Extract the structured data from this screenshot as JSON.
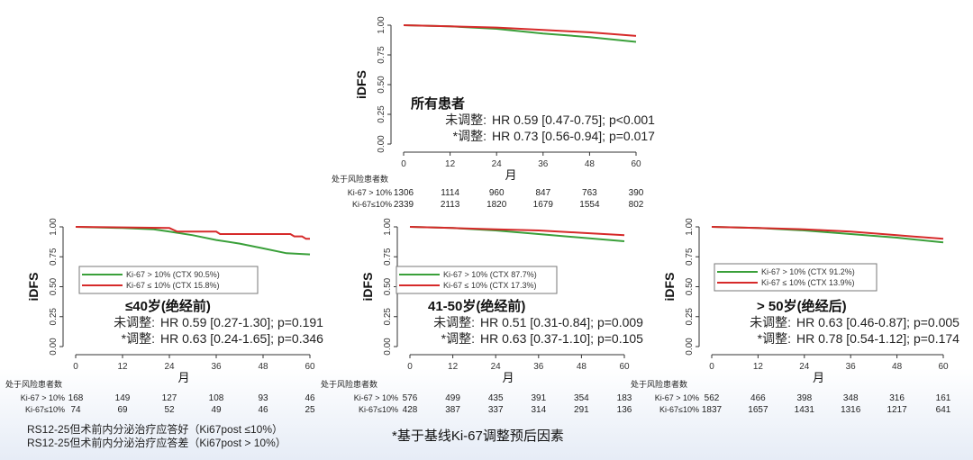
{
  "chart_data": [
    {
      "type": "line",
      "title": "所有患者",
      "ylabel": "iDFS",
      "xlabel": "月",
      "x_ticks": [
        0,
        12,
        24,
        36,
        48,
        60
      ],
      "y_ticks": [
        "0.00",
        "0.25",
        "0.50",
        "0.75",
        "1.00"
      ],
      "ylim": [
        0,
        1
      ],
      "xlim": [
        0,
        60
      ],
      "hr_unadj_label": "未调整:",
      "hr_unadj": "HR 0.59 [0.47-0.75]; p<0.001",
      "hr_adj_label": "*调整:",
      "hr_adj": "HR 0.73 [0.56-0.94]; p=0.017",
      "legend": null,
      "series": [
        {
          "name": "Ki-67 > 10%",
          "color": "#3aa03a",
          "points": [
            [
              0,
              1
            ],
            [
              12,
              0.99
            ],
            [
              24,
              0.97
            ],
            [
              36,
              0.93
            ],
            [
              48,
              0.9
            ],
            [
              60,
              0.86
            ]
          ]
        },
        {
          "name": "Ki-67 ≤ 10%",
          "color": "#d62a2a",
          "points": [
            [
              0,
              1
            ],
            [
              12,
              0.99
            ],
            [
              24,
              0.98
            ],
            [
              36,
              0.96
            ],
            [
              48,
              0.94
            ],
            [
              60,
              0.91
            ]
          ]
        }
      ],
      "risk_title": "处于风险患者数",
      "risk": [
        {
          "label": "Ki-67 > 10%",
          "values": [
            1306,
            1114,
            960,
            847,
            763,
            390
          ]
        },
        {
          "label": "Ki-67≤10%",
          "values": [
            2339,
            2113,
            1820,
            1679,
            1554,
            802
          ]
        }
      ]
    },
    {
      "type": "line",
      "title": "≤40岁(绝经前)",
      "ylabel": "iDFS",
      "xlabel": "月",
      "x_ticks": [
        0,
        12,
        24,
        36,
        48,
        60
      ],
      "y_ticks": [
        "0.00",
        "0.25",
        "0.50",
        "0.75",
        "1.00"
      ],
      "ylim": [
        0,
        1
      ],
      "xlim": [
        0,
        60
      ],
      "hr_unadj_label": "未调整:",
      "hr_unadj": "HR 0.59 [0.27-1.30]; p=0.191",
      "hr_adj_label": "*调整:",
      "hr_adj": "HR 0.63 [0.24-1.65]; p=0.346",
      "legend": [
        "Ki-67 > 10%  (CTX 90.5%)",
        "Ki-67 ≤ 10%  (CTX 15.8%)"
      ],
      "series": [
        {
          "name": "Ki-67 > 10%",
          "color": "#3aa03a",
          "points": [
            [
              0,
              1
            ],
            [
              12,
              0.99
            ],
            [
              20,
              0.98
            ],
            [
              24,
              0.96
            ],
            [
              30,
              0.93
            ],
            [
              36,
              0.89
            ],
            [
              42,
              0.86
            ],
            [
              48,
              0.82
            ],
            [
              54,
              0.78
            ],
            [
              60,
              0.77
            ]
          ]
        },
        {
          "name": "Ki-67 ≤ 10%",
          "color": "#d62a2a",
          "points": [
            [
              0,
              1
            ],
            [
              24,
              0.99
            ],
            [
              26,
              0.96
            ],
            [
              36,
              0.96
            ],
            [
              37,
              0.94
            ],
            [
              55,
              0.94
            ],
            [
              56,
              0.92
            ],
            [
              58,
              0.92
            ],
            [
              59,
              0.9
            ],
            [
              60,
              0.9
            ]
          ]
        }
      ],
      "risk_title": "处于风险患者数",
      "risk": [
        {
          "label": "Ki-67 > 10%",
          "values": [
            168,
            149,
            127,
            108,
            93,
            46
          ]
        },
        {
          "label": "Ki-67≤10%",
          "values": [
            74,
            69,
            52,
            49,
            46,
            25
          ]
        }
      ]
    },
    {
      "type": "line",
      "title": "41-50岁(绝经前)",
      "ylabel": "iDFS",
      "xlabel": "月",
      "x_ticks": [
        0,
        12,
        24,
        36,
        48,
        60
      ],
      "y_ticks": [
        "0.00",
        "0.25",
        "0.50",
        "0.75",
        "1.00"
      ],
      "ylim": [
        0,
        1
      ],
      "xlim": [
        0,
        60
      ],
      "hr_unadj_label": "未调整:",
      "hr_unadj": "HR 0.51 [0.31-0.84]; p=0.009",
      "hr_adj_label": "*调整:",
      "hr_adj": "HR 0.63 [0.37-1.10]; p=0.105",
      "legend": [
        "Ki-67 > 10%  (CTX 87.7%)",
        "Ki-67 ≤ 10%  (CTX 17.3%)"
      ],
      "series": [
        {
          "name": "Ki-67 > 10%",
          "color": "#3aa03a",
          "points": [
            [
              0,
              1
            ],
            [
              12,
              0.99
            ],
            [
              24,
              0.97
            ],
            [
              36,
              0.94
            ],
            [
              48,
              0.91
            ],
            [
              60,
              0.88
            ]
          ]
        },
        {
          "name": "Ki-67 ≤ 10%",
          "color": "#d62a2a",
          "points": [
            [
              0,
              1
            ],
            [
              12,
              0.99
            ],
            [
              24,
              0.98
            ],
            [
              36,
              0.97
            ],
            [
              48,
              0.95
            ],
            [
              60,
              0.93
            ]
          ]
        }
      ],
      "risk_title": "处于风险患者数",
      "risk": [
        {
          "label": "Ki-67 > 10%",
          "values": [
            576,
            499,
            435,
            391,
            354,
            183
          ]
        },
        {
          "label": "Ki-67≤10%",
          "values": [
            428,
            387,
            337,
            314,
            291,
            136
          ]
        }
      ]
    },
    {
      "type": "line",
      "title": "> 50岁(绝经后)",
      "ylabel": "iDFS",
      "xlabel": "月",
      "x_ticks": [
        0,
        12,
        24,
        36,
        48,
        60
      ],
      "y_ticks": [
        "0.00",
        "0.25",
        "0.50",
        "0.75",
        "1.00"
      ],
      "ylim": [
        0,
        1
      ],
      "xlim": [
        0,
        60
      ],
      "hr_unadj_label": "未调整:",
      "hr_unadj": "HR 0.63 [0.46-0.87]; p=0.005",
      "hr_adj_label": "*调整:",
      "hr_adj": "HR 0.78 [0.54-1.12]; p=0.174",
      "legend": [
        "Ki-67 > 10%  (CTX 91.2%)",
        "Ki-67 ≤ 10%  (CTX 13.9%)"
      ],
      "series": [
        {
          "name": "Ki-67 > 10%",
          "color": "#3aa03a",
          "points": [
            [
              0,
              1
            ],
            [
              12,
              0.99
            ],
            [
              24,
              0.97
            ],
            [
              36,
              0.94
            ],
            [
              48,
              0.91
            ],
            [
              60,
              0.87
            ]
          ]
        },
        {
          "name": "Ki-67 ≤ 10%",
          "color": "#d62a2a",
          "points": [
            [
              0,
              1
            ],
            [
              12,
              0.99
            ],
            [
              24,
              0.98
            ],
            [
              36,
              0.96
            ],
            [
              48,
              0.93
            ],
            [
              60,
              0.9
            ]
          ]
        }
      ],
      "risk_title": "处于风险患者数",
      "risk": [
        {
          "label": "Ki-67 > 10%",
          "values": [
            562,
            466,
            398,
            348,
            316,
            161
          ]
        },
        {
          "label": "Ki-67≤10%",
          "values": [
            1837,
            1657,
            1431,
            1316,
            1217,
            641
          ]
        }
      ]
    }
  ],
  "footnotes": [
    "RS12-25但术前内分泌治疗应答好（Ki67post ≤10%）",
    "RS12-25但术前内分泌治疗应答差（Ki67post > 10%）"
  ],
  "note": "*基于基线Ki-67调整预后因素"
}
